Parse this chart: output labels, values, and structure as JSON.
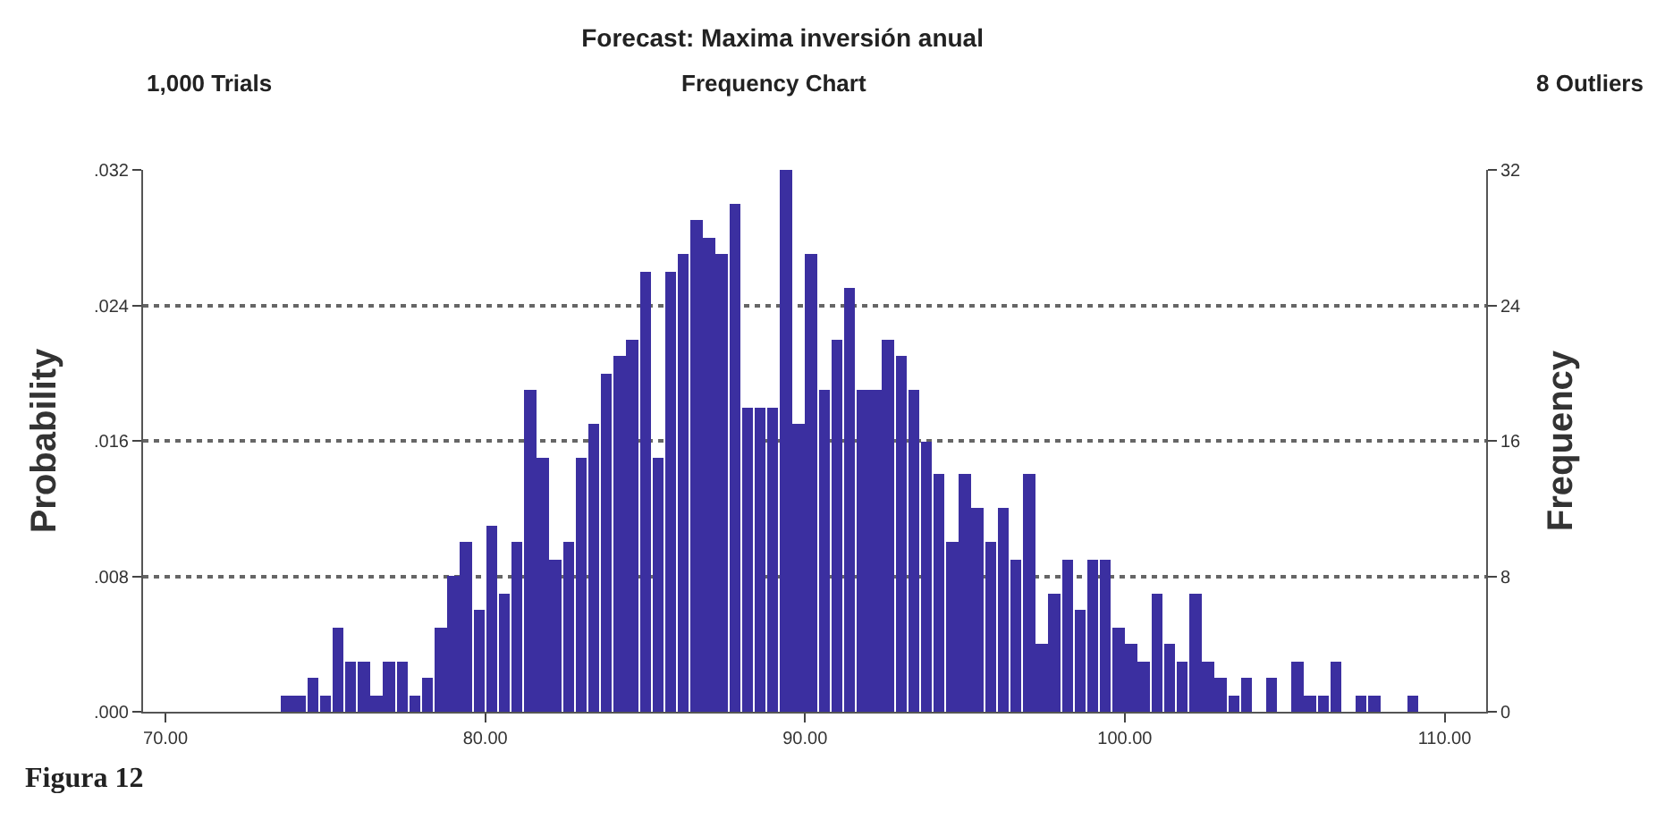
{
  "chart_data": {
    "type": "histogram",
    "title": "Forecast: Maxima inversión anual",
    "xlabel": null,
    "ylabel": "Probability",
    "y2label": "Frequency",
    "annotations": [
      "1,000 Trials",
      "Frequency Chart",
      "8 Outliers",
      "Figura 12"
    ],
    "bins": [
      73.6,
      74.0,
      74.4,
      74.8,
      75.2,
      75.6,
      76.0,
      76.4,
      76.8,
      77.2,
      77.6,
      78.0,
      78.4,
      78.8,
      79.2,
      79.6,
      80.0,
      80.4,
      80.8,
      81.2,
      81.6,
      82.0,
      82.4,
      82.8,
      83.2,
      83.6,
      84.0,
      84.4,
      84.8,
      85.2,
      85.6,
      86.0,
      86.4,
      86.8,
      87.2,
      87.6,
      88.0,
      88.4,
      88.8,
      89.2,
      89.6,
      90.0,
      90.4,
      90.8,
      91.2,
      91.6,
      92.0,
      92.4,
      92.8,
      93.2,
      93.6,
      94.0,
      94.4,
      94.8,
      95.2,
      95.6,
      96.0,
      96.4,
      96.8,
      97.2,
      97.6,
      98.0,
      98.4,
      98.8,
      99.2,
      99.6,
      100.0,
      100.4,
      100.8,
      101.2,
      101.6,
      102.0,
      102.4,
      102.8,
      103.2,
      103.6,
      104.0,
      104.4,
      104.8,
      105.2,
      105.6,
      106.0,
      106.4,
      106.8,
      107.2,
      107.6,
      108.0,
      108.4,
      108.8,
      109.2,
      109.6
    ],
    "series": [
      {
        "color": "#3b2fa0",
        "axis": "y2",
        "values": [
          1,
          1,
          2,
          1,
          5,
          3,
          3,
          1,
          3,
          3,
          1,
          2,
          5,
          8,
          10,
          6,
          11,
          7,
          10,
          19,
          15,
          9,
          10,
          15,
          17,
          20,
          21,
          22,
          26,
          15,
          26,
          27,
          29,
          28,
          27,
          30,
          18,
          18,
          18,
          32,
          17,
          27,
          19,
          22,
          25,
          19,
          19,
          22,
          21,
          19,
          16,
          14,
          10,
          14,
          12,
          10,
          12,
          9,
          14,
          4,
          7,
          9,
          6,
          9,
          9,
          5,
          4,
          3,
          7,
          4,
          3,
          7,
          3,
          2,
          1,
          2,
          0,
          2,
          0,
          3,
          1,
          1,
          3,
          0,
          1,
          1,
          0,
          0,
          1,
          0
        ]
      }
    ],
    "xlim": [
      69.3,
      111.3
    ],
    "xticks": [
      {
        "value": 70,
        "label": "70.00"
      },
      {
        "value": 80,
        "label": "80.00"
      },
      {
        "value": 90,
        "label": "90.00"
      },
      {
        "value": 100,
        "label": "100.00"
      },
      {
        "value": 110,
        "label": "110.00"
      }
    ],
    "ylim": [
      0,
      0.032
    ],
    "yticks": [
      {
        "value": 0,
        "label": ".000"
      },
      {
        "value": 0.008,
        "label": ".008"
      },
      {
        "value": 0.016,
        "label": ".016"
      },
      {
        "value": 0.024,
        "label": ".024"
      },
      {
        "value": 0.032,
        "label": ".032"
      }
    ],
    "y2lim": [
      0,
      32
    ],
    "y2ticks": [
      0,
      8,
      16,
      24,
      32
    ],
    "grid": "y"
  }
}
